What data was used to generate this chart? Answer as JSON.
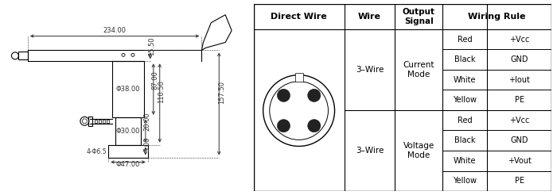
{
  "bg_color": "#ffffff",
  "line_color": "#000000",
  "dim_color": "#333333",
  "wiring_data_current": [
    [
      "Red",
      "+Vcc"
    ],
    [
      "Black",
      "GND"
    ],
    [
      "White",
      "+Iout"
    ],
    [
      "Yellow",
      "PE"
    ]
  ],
  "wiring_data_voltage": [
    [
      "Red",
      "+Vcc"
    ],
    [
      "Black",
      "GND"
    ],
    [
      "White",
      "+Vout"
    ],
    [
      "Yellow",
      "PE"
    ]
  ]
}
